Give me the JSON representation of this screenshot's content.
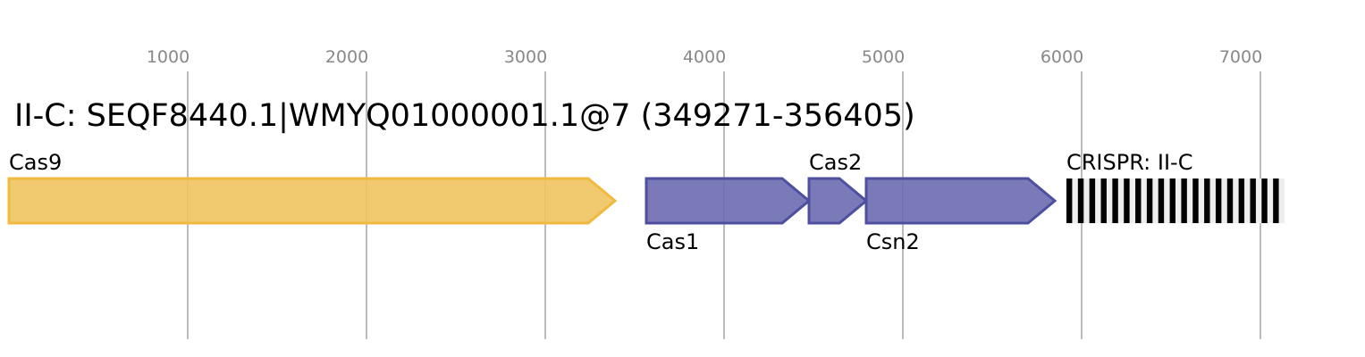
{
  "title": "II-C: SEQF8440.1|WMYQ01000001.1@7 (349271-356405)",
  "axis": {
    "ticks": [
      1000,
      2000,
      3000,
      4000,
      5000,
      6000,
      7000
    ],
    "tick_labels": [
      "1000",
      "2000",
      "3000",
      "4000",
      "5000",
      "6000",
      "7000"
    ],
    "grid": true
  },
  "genes": [
    {
      "name": "Cas9",
      "start": 0,
      "end": 3390,
      "strand": "+",
      "label_position": "above",
      "fill": "#f0c35f",
      "stroke": "#f0b93f"
    },
    {
      "name": "Cas1",
      "start": 3565,
      "end": 4475,
      "strand": "+",
      "label_position": "below",
      "fill": "#6c6cb0",
      "stroke": "#4f4fa0"
    },
    {
      "name": "Cas2",
      "start": 4475,
      "end": 4795,
      "strand": "+",
      "label_position": "above",
      "fill": "#6c6cb0",
      "stroke": "#4f4fa0"
    },
    {
      "name": "Csn2",
      "start": 4795,
      "end": 5850,
      "strand": "+",
      "label_position": "below",
      "fill": "#6c6cb0",
      "stroke": "#4f4fa0"
    }
  ],
  "crispr": {
    "label": "CRISPR: II-C",
    "start": 5915,
    "end": 7135,
    "repeats": 19,
    "color": "#000000"
  }
}
